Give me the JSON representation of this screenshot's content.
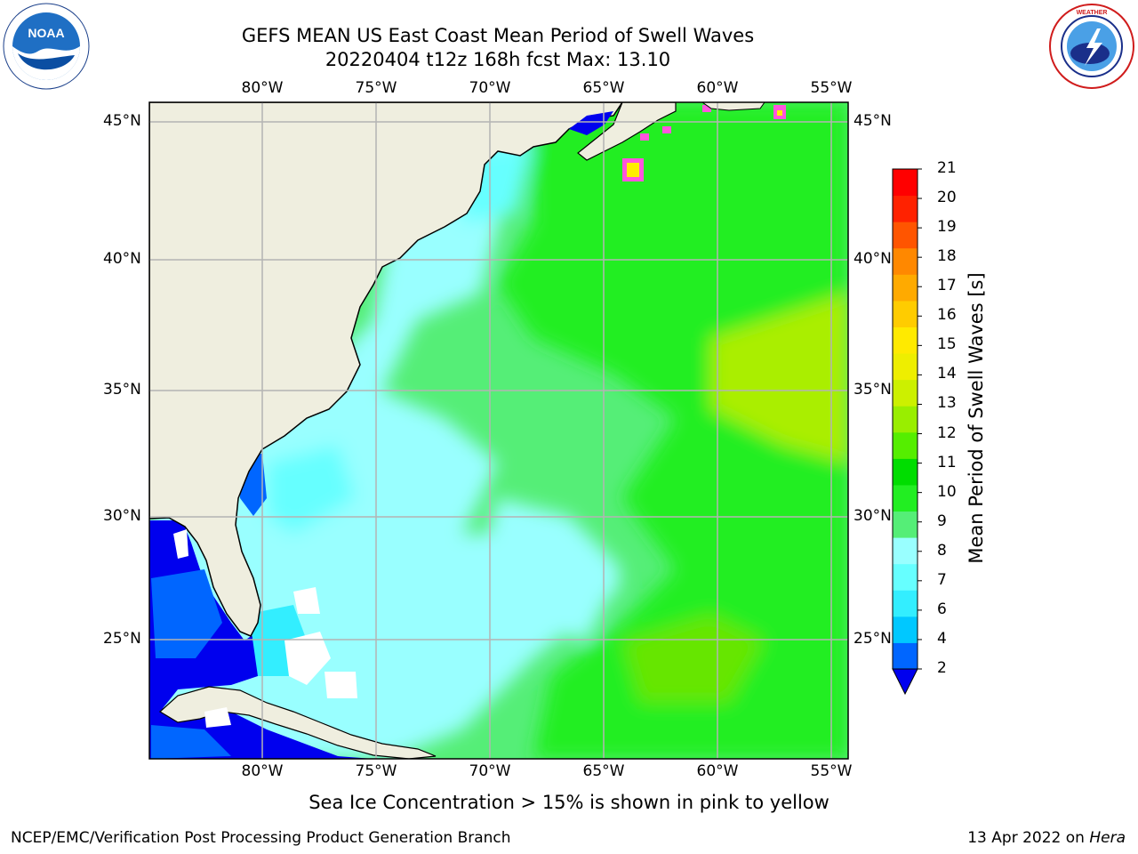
{
  "title": {
    "line1": "GEFS MEAN US East Coast Mean Period of Swell Waves",
    "line2": "20220404 t12z 168h fcst   Max: 13.10"
  },
  "logos": {
    "noaa_text": "NOAA",
    "noaa_ring_text": "NATIONAL OCEANIC AND ATMOSPHERIC ADMINISTRATION · U.S. DEPARTMENT OF COMMERCE",
    "nws_ring_text": "NATIONAL WEATHER SERVICE"
  },
  "map": {
    "region": "US East Coast",
    "lon_labels": [
      "80°W",
      "75°W",
      "70°W",
      "65°W",
      "60°W",
      "55°W"
    ],
    "lat_labels": [
      "45°N",
      "40°N",
      "35°N",
      "30°N",
      "25°N"
    ],
    "land_color": "#efeedf",
    "grid_color": "#b4b4b4"
  },
  "colorbar": {
    "title": "Mean Period of Swell Waves [s]",
    "ticks": [
      "2",
      "4",
      "6",
      "7",
      "8",
      "9",
      "10",
      "11",
      "12",
      "13",
      "14",
      "15",
      "16",
      "17",
      "18",
      "19",
      "20",
      "21"
    ],
    "colors": [
      "#0066ff",
      "#00c8ff",
      "#33eeff",
      "#66ffff",
      "#99ffff",
      "#55ee77",
      "#22ee22",
      "#00dd00",
      "#55ee00",
      "#99ee00",
      "#ccf000",
      "#eeee00",
      "#ffea00",
      "#ffcc00",
      "#ffaa00",
      "#ff8800",
      "#ff5500",
      "#ff2200",
      "#ff0000"
    ],
    "under_color": "#0000ee"
  },
  "footer": {
    "ice_note": "Sea Ice Concentration > 15% is shown in pink to yellow",
    "credit": "NCEP/EMC/Verification Post Processing Product Generation Branch",
    "date": "13 Apr 2022 on",
    "host": "Hera"
  }
}
